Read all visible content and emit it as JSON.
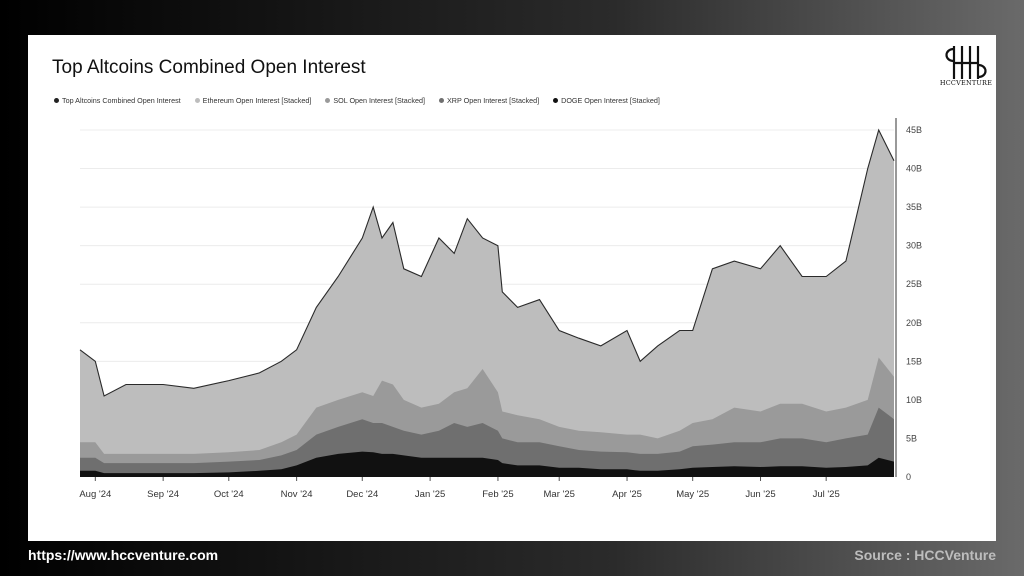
{
  "chart_data": {
    "type": "area",
    "title": "Top Altcoins Combined Open Interest",
    "legend": [
      {
        "name": "Top Altcoins Combined Open Interest",
        "color": "#222222"
      },
      {
        "name": "Ethereum Open Interest [Stacked]",
        "color": "#bdbdbd"
      },
      {
        "name": "SOL Open Interest [Stacked]",
        "color": "#9a9a9a"
      },
      {
        "name": "XRP Open Interest [Stacked]",
        "color": "#6f6f6f"
      },
      {
        "name": "DOGE Open Interest [Stacked]",
        "color": "#111111"
      }
    ],
    "legend_position": "top-left",
    "x_tick_labels": [
      "Aug '24",
      "Sep '24",
      "Oct '24",
      "Nov '24",
      "Dec '24",
      "Jan '25",
      "Feb '25",
      "Mar '25",
      "Apr '25",
      "May '25",
      "Jun '25",
      "Jul '25"
    ],
    "y_tick_labels": [
      "0",
      "5B",
      "10B",
      "15B",
      "20B",
      "25B",
      "30B",
      "35B",
      "40B",
      "45B"
    ],
    "y_axis_position": "right",
    "ylim": [
      0,
      45
    ],
    "y_unit": "B",
    "grid": true,
    "x": [
      "2024-07-25",
      "2024-08-01",
      "2024-08-05",
      "2024-08-15",
      "2024-09-01",
      "2024-09-15",
      "2024-10-01",
      "2024-10-15",
      "2024-10-25",
      "2024-11-01",
      "2024-11-10",
      "2024-11-20",
      "2024-12-01",
      "2024-12-06",
      "2024-12-10",
      "2024-12-15",
      "2024-12-20",
      "2024-12-28",
      "2025-01-05",
      "2025-01-12",
      "2025-01-18",
      "2025-01-25",
      "2025-02-01",
      "2025-02-03",
      "2025-02-10",
      "2025-02-20",
      "2025-03-01",
      "2025-03-10",
      "2025-03-20",
      "2025-04-01",
      "2025-04-07",
      "2025-04-15",
      "2025-04-25",
      "2025-05-01",
      "2025-05-10",
      "2025-05-20",
      "2025-06-01",
      "2025-06-10",
      "2025-06-20",
      "2025-07-01",
      "2025-07-10",
      "2025-07-20",
      "2025-07-25",
      "2025-08-01"
    ],
    "series": [
      {
        "name": "DOGE Open Interest [Stacked]",
        "values": [
          0.8,
          0.8,
          0.5,
          0.5,
          0.5,
          0.5,
          0.6,
          0.8,
          1.0,
          1.5,
          2.5,
          3.0,
          3.3,
          3.2,
          3.0,
          3.0,
          2.8,
          2.5,
          2.5,
          2.5,
          2.5,
          2.5,
          2.2,
          1.8,
          1.5,
          1.5,
          1.2,
          1.2,
          1.0,
          1.0,
          0.8,
          0.8,
          1.0,
          1.2,
          1.3,
          1.4,
          1.3,
          1.4,
          1.4,
          1.2,
          1.3,
          1.5,
          2.5,
          2.0
        ]
      },
      {
        "name": "XRP Open Interest [Stacked]",
        "values": [
          2.5,
          2.5,
          1.8,
          1.8,
          1.8,
          1.8,
          2.0,
          2.2,
          2.8,
          3.5,
          5.5,
          6.5,
          7.5,
          7.0,
          7.0,
          6.5,
          6.0,
          5.5,
          6.0,
          7.0,
          6.5,
          7.0,
          6.0,
          5.0,
          4.5,
          4.5,
          4.0,
          3.5,
          3.3,
          3.2,
          3.0,
          3.0,
          3.3,
          4.0,
          4.2,
          4.5,
          4.5,
          5.0,
          5.0,
          4.5,
          5.0,
          5.5,
          9.0,
          7.5
        ]
      },
      {
        "name": "SOL Open Interest [Stacked]",
        "values": [
          4.5,
          4.5,
          3.0,
          3.0,
          3.0,
          3.0,
          3.2,
          3.5,
          4.5,
          5.5,
          9.0,
          10.0,
          11.0,
          10.5,
          12.5,
          12.0,
          10.0,
          9.0,
          9.5,
          11.0,
          11.5,
          14.0,
          11.0,
          8.5,
          8.0,
          7.5,
          6.5,
          6.0,
          5.8,
          5.5,
          5.5,
          5.0,
          6.0,
          7.0,
          7.5,
          9.0,
          8.5,
          9.5,
          9.5,
          8.5,
          9.0,
          10.0,
          15.5,
          13.0
        ]
      },
      {
        "name": "Ethereum Open Interest [Stacked]",
        "values": [
          16.5,
          15.0,
          10.5,
          12.0,
          12.0,
          11.5,
          12.5,
          13.5,
          15.0,
          16.5,
          22.0,
          26.0,
          31.0,
          35.0,
          31.0,
          33.0,
          27.0,
          26.0,
          31.0,
          29.0,
          33.5,
          31.0,
          30.0,
          24.0,
          22.0,
          23.0,
          19.0,
          18.0,
          17.0,
          19.0,
          15.0,
          17.0,
          19.0,
          19.0,
          27.0,
          28.0,
          27.0,
          30.0,
          26.0,
          26.0,
          28.0,
          40.0,
          45.0,
          41.0
        ]
      }
    ]
  },
  "footer": {
    "url": "https://www.hccventure.com",
    "source": "Source : HCCVenture"
  },
  "logo": {
    "text": "HCCVENTURE"
  }
}
